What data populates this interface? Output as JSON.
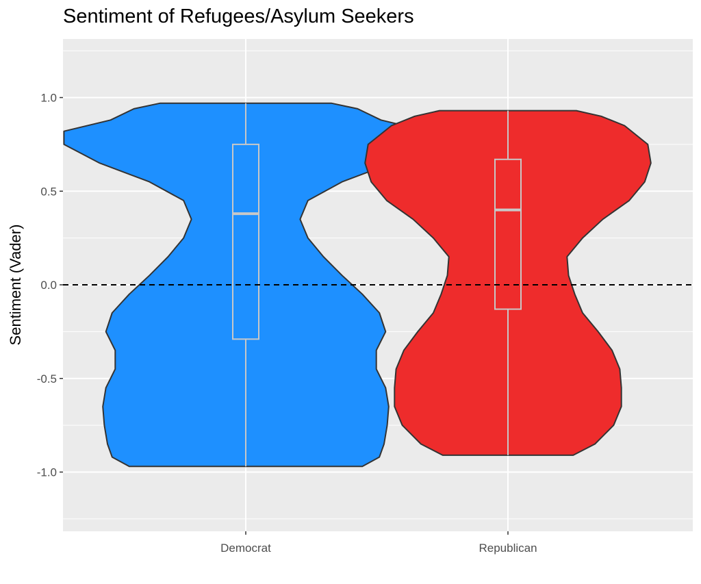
{
  "chart_data": {
    "type": "violin",
    "title": "Sentiment of Refugees/Asylum Seekers",
    "xlabel": "",
    "ylabel": "Sentiment (Vader)",
    "ylim": [
      -1.3,
      1.3
    ],
    "yticks": [
      -1.0,
      -0.5,
      0.0,
      0.5,
      1.0
    ],
    "ytick_labels": [
      "-1.0",
      "-0.5",
      "0.0",
      "0.5",
      "1.0"
    ],
    "reference_line": {
      "y": 0.0,
      "style": "dashed",
      "color": "#000000"
    },
    "grid": true,
    "background": "#ebebeb",
    "categories": [
      "Democrat",
      "Republican"
    ],
    "series": [
      {
        "category": "Democrat",
        "color": "#1e90ff",
        "box": {
          "min": -0.97,
          "q1": -0.29,
          "median": 0.38,
          "q3": 0.75,
          "max": 0.97
        },
        "density": [
          [
            -0.97,
            0.75
          ],
          [
            -0.92,
            0.86
          ],
          [
            -0.85,
            0.89
          ],
          [
            -0.75,
            0.91
          ],
          [
            -0.65,
            0.92
          ],
          [
            -0.55,
            0.9
          ],
          [
            -0.45,
            0.84
          ],
          [
            -0.35,
            0.84
          ],
          [
            -0.25,
            0.9
          ],
          [
            -0.15,
            0.86
          ],
          [
            -0.05,
            0.75
          ],
          [
            0.05,
            0.62
          ],
          [
            0.15,
            0.5
          ],
          [
            0.25,
            0.4
          ],
          [
            0.35,
            0.35
          ],
          [
            0.45,
            0.4
          ],
          [
            0.55,
            0.62
          ],
          [
            0.65,
            0.94
          ],
          [
            0.75,
            1.17
          ],
          [
            0.82,
            1.17
          ],
          [
            0.88,
            0.87
          ],
          [
            0.94,
            0.72
          ],
          [
            0.97,
            0.55
          ]
        ]
      },
      {
        "category": "Republican",
        "color": "#ee2c2c",
        "box": {
          "min": -0.91,
          "q1": -0.13,
          "median": 0.4,
          "q3": 0.67,
          "max": 0.93
        },
        "density": [
          [
            -0.91,
            0.42
          ],
          [
            -0.85,
            0.56
          ],
          [
            -0.75,
            0.68
          ],
          [
            -0.65,
            0.73
          ],
          [
            -0.55,
            0.73
          ],
          [
            -0.45,
            0.72
          ],
          [
            -0.35,
            0.67
          ],
          [
            -0.25,
            0.58
          ],
          [
            -0.15,
            0.48
          ],
          [
            -0.05,
            0.43
          ],
          [
            0.05,
            0.39
          ],
          [
            0.15,
            0.38
          ],
          [
            0.25,
            0.48
          ],
          [
            0.35,
            0.61
          ],
          [
            0.45,
            0.78
          ],
          [
            0.55,
            0.88
          ],
          [
            0.65,
            0.92
          ],
          [
            0.75,
            0.9
          ],
          [
            0.85,
            0.75
          ],
          [
            0.9,
            0.6
          ],
          [
            0.93,
            0.44
          ]
        ]
      }
    ]
  }
}
